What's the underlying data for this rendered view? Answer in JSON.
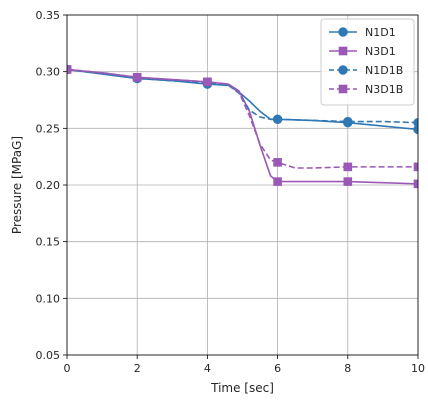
{
  "chart_data": {
    "type": "line",
    "title": "",
    "xlabel": "Time [sec]",
    "ylabel": "Pressure [MPaG]",
    "xlim": [
      0,
      10
    ],
    "ylim": [
      0.05,
      0.35
    ],
    "xticks": [
      0,
      2,
      4,
      6,
      8,
      10
    ],
    "xtick_labels": [
      "0",
      "2",
      "4",
      "6",
      "8",
      "10"
    ],
    "yticks": [
      0.05,
      0.1,
      0.15,
      0.2,
      0.25,
      0.3,
      0.35
    ],
    "ytick_labels": [
      "0.05",
      "0.10",
      "0.15",
      "0.20",
      "0.25",
      "0.30",
      "0.35"
    ],
    "grid": true,
    "legend_position": "top-right",
    "series": [
      {
        "name": "N1D1",
        "color": "#2f78b4",
        "style": "solid",
        "marker": "circle",
        "line": [
          [
            0,
            0.302
          ],
          [
            1,
            0.298
          ],
          [
            2,
            0.294
          ],
          [
            3,
            0.292
          ],
          [
            4,
            0.289
          ],
          [
            4.6,
            0.288
          ],
          [
            4.9,
            0.282
          ],
          [
            5.2,
            0.274
          ],
          [
            5.5,
            0.265
          ],
          [
            5.8,
            0.258
          ],
          [
            6,
            0.258
          ],
          [
            7,
            0.257
          ],
          [
            8,
            0.255
          ],
          [
            9,
            0.252
          ],
          [
            10,
            0.249
          ]
        ],
        "markers": [
          [
            0,
            0.302
          ],
          [
            2,
            0.294
          ],
          [
            4,
            0.289
          ],
          [
            6,
            0.258
          ],
          [
            8,
            0.255
          ],
          [
            10,
            0.249
          ]
        ]
      },
      {
        "name": "N3D1",
        "color": "#9b59b6",
        "style": "solid",
        "marker": "square",
        "line": [
          [
            0,
            0.302
          ],
          [
            1,
            0.299
          ],
          [
            2,
            0.295
          ],
          [
            3,
            0.293
          ],
          [
            4,
            0.291
          ],
          [
            4.6,
            0.289
          ],
          [
            4.9,
            0.283
          ],
          [
            5.2,
            0.265
          ],
          [
            5.5,
            0.235
          ],
          [
            5.8,
            0.208
          ],
          [
            6,
            0.203
          ],
          [
            7,
            0.203
          ],
          [
            8,
            0.203
          ],
          [
            9,
            0.202
          ],
          [
            10,
            0.201
          ]
        ],
        "markers": [
          [
            0,
            0.302
          ],
          [
            2,
            0.295
          ],
          [
            4,
            0.291
          ],
          [
            6,
            0.203
          ],
          [
            8,
            0.203
          ],
          [
            10,
            0.201
          ]
        ]
      },
      {
        "name": "N1D1B",
        "color": "#2f78b4",
        "style": "dashed",
        "marker": "circle",
        "line": [
          [
            0,
            0.302
          ],
          [
            1,
            0.298
          ],
          [
            2,
            0.294
          ],
          [
            3,
            0.292
          ],
          [
            4,
            0.29
          ],
          [
            4.6,
            0.288
          ],
          [
            4.9,
            0.281
          ],
          [
            5.2,
            0.266
          ],
          [
            5.5,
            0.26
          ],
          [
            5.8,
            0.258
          ],
          [
            6,
            0.258
          ],
          [
            7,
            0.257
          ],
          [
            8,
            0.256
          ],
          [
            9,
            0.256
          ],
          [
            10,
            0.255
          ]
        ],
        "markers": [
          [
            0,
            0.302
          ],
          [
            2,
            0.294
          ],
          [
            4,
            0.29
          ],
          [
            6,
            0.258
          ],
          [
            8,
            0.256
          ],
          [
            10,
            0.255
          ]
        ]
      },
      {
        "name": "N3D1B",
        "color": "#9b59b6",
        "style": "dashed",
        "marker": "square",
        "line": [
          [
            0,
            0.302
          ],
          [
            1,
            0.299
          ],
          [
            2,
            0.295
          ],
          [
            3,
            0.293
          ],
          [
            4,
            0.291
          ],
          [
            4.6,
            0.289
          ],
          [
            4.9,
            0.282
          ],
          [
            5.2,
            0.261
          ],
          [
            5.5,
            0.236
          ],
          [
            5.8,
            0.222
          ],
          [
            6,
            0.22
          ],
          [
            6.5,
            0.215
          ],
          [
            7,
            0.215
          ],
          [
            8,
            0.216
          ],
          [
            9,
            0.216
          ],
          [
            10,
            0.216
          ]
        ],
        "markers": [
          [
            0,
            0.302
          ],
          [
            2,
            0.295
          ],
          [
            4,
            0.291
          ],
          [
            6,
            0.22
          ],
          [
            8,
            0.216
          ],
          [
            10,
            0.216
          ]
        ]
      }
    ]
  }
}
